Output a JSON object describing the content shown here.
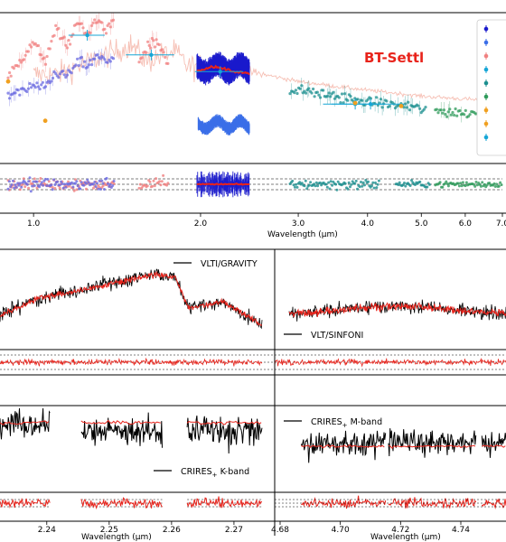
{
  "colors": {
    "data": "#000000",
    "model": "#e8231b",
    "hst_red": "#f08080",
    "hst_blue": "#6a6ae0",
    "spec_pink": "#f5b5a8",
    "gravity_blue": "#1a1acc",
    "sinfoni_blue": "#3a6ee8",
    "teal": "#1b8f8f",
    "cyan": "#16a6d6",
    "orange": "#f0a020",
    "green": "#2e9a5a"
  },
  "chart_data": [
    {
      "type": "scatter",
      "panel": "sed",
      "xscale": "log",
      "xlim": [
        0.87,
        7.0
      ],
      "xlabel": "Wavelength (μm)",
      "xticks": [
        1.0,
        2.0,
        3.0,
        4.0,
        5.0,
        6.0,
        7.0
      ],
      "xtick_labels": [
        "1.0",
        "2.0",
        "3.0",
        "4.0",
        "5.0",
        "6.0",
        "7.0"
      ],
      "model_label": "BT-Settl",
      "grid": false,
      "legend": "right, clipped",
      "series": [
        {
          "kind": "spectrum",
          "color": "spec_pink",
          "x": [
            1.1,
            1.2,
            1.3,
            1.4,
            1.5,
            1.6,
            1.7,
            1.8,
            1.9,
            2.1,
            2.3,
            2.6,
            3.0,
            3.5,
            4.0,
            5.0,
            6.0,
            7.0
          ],
          "y": [
            0.42,
            0.5,
            0.58,
            0.65,
            0.72,
            0.55,
            0.62,
            0.65,
            0.5,
            0.5,
            0.47,
            0.42,
            0.35,
            0.3,
            0.26,
            0.2,
            0.17,
            0.15
          ]
        },
        {
          "kind": "points",
          "color": "hst_red",
          "x": [
            0.9,
            1.0,
            1.05,
            1.1,
            1.15,
            1.2,
            1.25,
            1.3,
            1.35,
            1.4
          ],
          "y": [
            0.4,
            0.75,
            0.55,
            0.9,
            0.7,
            0.95,
            0.82,
            1.0,
            0.85,
            0.98
          ]
        },
        {
          "kind": "points",
          "color": "hst_blue",
          "x": [
            0.9,
            1.0,
            1.05,
            1.1,
            1.15,
            1.2,
            1.25,
            1.3,
            1.35,
            1.4
          ],
          "y": [
            0.2,
            0.3,
            0.28,
            0.45,
            0.4,
            0.55,
            0.5,
            0.6,
            0.55,
            0.62
          ]
        },
        {
          "kind": "points",
          "color": "hst_red",
          "x": [
            1.55,
            1.6,
            1.65,
            1.7,
            1.75
          ],
          "y": [
            0.55,
            0.68,
            0.75,
            0.68,
            0.52
          ]
        },
        {
          "kind": "band",
          "color": "gravity_blue",
          "x": [
            1.97,
            2.45
          ],
          "y": [
            0.35,
            0.62
          ]
        },
        {
          "kind": "band",
          "color": "sinfoni_blue",
          "x": [
            1.98,
            2.45
          ],
          "y": [
            -0.16,
            -0.02
          ]
        },
        {
          "kind": "points",
          "color": "teal",
          "x": [
            2.9,
            3.1,
            3.3,
            3.5,
            3.7,
            3.9,
            4.1,
            4.6,
            4.9,
            5.1
          ],
          "y": [
            0.27,
            0.25,
            0.22,
            0.2,
            0.18,
            0.15,
            0.14,
            0.1,
            0.08,
            0.06
          ]
        },
        {
          "kind": "points",
          "color": "green",
          "x": [
            5.3,
            5.7,
            6.1,
            6.5,
            7.0
          ],
          "y": [
            0.05,
            0.04,
            0.03,
            0.03,
            0.02
          ]
        },
        {
          "kind": "model",
          "color": "model",
          "x": [
            1.97,
            2.1,
            2.2,
            2.3,
            2.45
          ],
          "y": [
            0.45,
            0.5,
            0.48,
            0.45,
            0.43
          ]
        },
        {
          "kind": "errbar",
          "color": "cyan",
          "x": [
            1.25,
            1.63,
            2.17,
            3.8,
            4.05
          ],
          "y": [
            0.82,
            0.62,
            0.45,
            0.12,
            0.12
          ],
          "xerr": [
            0.15,
            0.2,
            0.2,
            0.25,
            0.3
          ]
        }
      ]
    },
    {
      "type": "scatter",
      "panel": "sed-residuals",
      "xscale": "log",
      "xlim": [
        0.87,
        7.0
      ],
      "ylim": [
        -1,
        1
      ],
      "reference_lines": [
        0
      ]
    },
    {
      "type": "line",
      "panel": "gravity",
      "xlim": [
        1.97,
        2.45
      ],
      "legend": "top",
      "series": [
        {
          "name": "VLTI/GRAVITY",
          "color": "data"
        },
        {
          "name": "",
          "color": "model"
        }
      ],
      "shape": {
        "x": [
          1.97,
          2.05,
          2.15,
          2.25,
          2.3,
          2.35,
          2.4,
          2.45
        ],
        "y": [
          0.45,
          0.6,
          0.75,
          0.85,
          0.82,
          0.55,
          0.48,
          0.3
        ]
      }
    },
    {
      "type": "line",
      "panel": "sinfoni",
      "legend": "bottom-left",
      "series": [
        {
          "name": "VLT/SINFONI",
          "color": "data"
        },
        {
          "name": "",
          "color": "model"
        }
      ]
    },
    {
      "type": "line",
      "panel": "kband",
      "xlim": [
        2.2325,
        2.2745
      ],
      "xticks": [
        2.24,
        2.25,
        2.26,
        2.27
      ],
      "xtick_labels": [
        "2.24",
        "2.25",
        "2.26",
        "2.27"
      ],
      "xlabel": "Wavelength (μm)",
      "legend": "bottom-right",
      "segments": [
        [
          2.2325,
          2.2405
        ],
        [
          2.2455,
          2.2585
        ],
        [
          2.2625,
          2.2745
        ]
      ],
      "series": [
        {
          "name": "CRIRES",
          "sub": "+",
          "suffix": "K-band",
          "color": "data"
        },
        {
          "name": "",
          "color": "model"
        }
      ]
    },
    {
      "type": "line",
      "panel": "mband",
      "xlim": [
        4.68,
        4.755
      ],
      "xticks": [
        4.68,
        4.7,
        4.72,
        4.74
      ],
      "xtick_labels": [
        "4.68",
        "4.70",
        "4.72",
        "4.74"
      ],
      "xlabel": "Wavelength (μm)",
      "legend": "top-left",
      "segments": [
        [
          4.687,
          4.715
        ],
        [
          4.716,
          4.745
        ],
        [
          4.747,
          4.755
        ]
      ],
      "series": [
        {
          "name": "CRIRES",
          "sub": "+",
          "suffix": "M-band",
          "color": "data"
        },
        {
          "name": "",
          "color": "model"
        }
      ]
    }
  ]
}
